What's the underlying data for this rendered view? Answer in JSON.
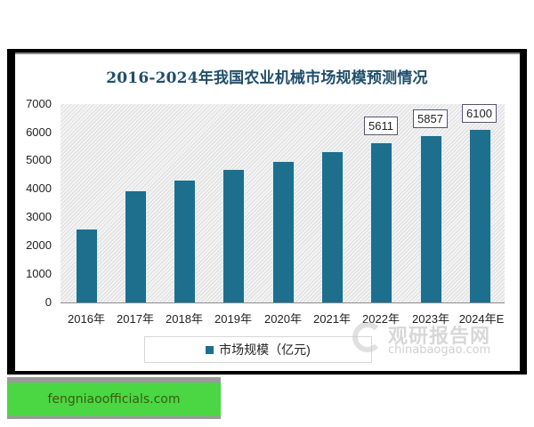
{
  "chart_data": {
    "type": "bar",
    "title": "2016-2024年我国农业机械市场规模预测情况",
    "categories": [
      "2016年",
      "2017年",
      "2018年",
      "2019年",
      "2020年",
      "2021年",
      "2022年",
      "2023年",
      "2024年E"
    ],
    "series": [
      {
        "name": "市场规模（亿元)",
        "values": [
          2570,
          3920,
          4300,
          4670,
          4950,
          5300,
          5611,
          5857,
          6100
        ],
        "color": "#1e6e8e"
      }
    ],
    "data_labels": {
      "6": "5611",
      "7": "5857",
      "8": "6100"
    },
    "xlabel": "",
    "ylabel": "",
    "ylim": [
      0,
      7000
    ],
    "yticks": [
      "0",
      "1000",
      "2000",
      "3000",
      "4000",
      "5000",
      "6000",
      "7000"
    ],
    "grid": false,
    "legend_position": "bottom"
  },
  "labels": {
    "title": "2016-2024年我国农业机械市场规模预测情况",
    "legend": "市场规模（亿元)",
    "dl_2022": "5611",
    "dl_2023": "5857",
    "dl_2024": "6100",
    "y": [
      "0",
      "1000",
      "2000",
      "3000",
      "4000",
      "5000",
      "6000",
      "7000"
    ],
    "x": [
      "2016年",
      "2017年",
      "2018年",
      "2019年",
      "2020年",
      "2021年",
      "2022年",
      "2023年",
      "2024年E"
    ]
  },
  "watermark": {
    "cn": "观研报告网",
    "en": "chinabaogao.com"
  },
  "badge": {
    "text": "fengniaoofficials.com"
  }
}
